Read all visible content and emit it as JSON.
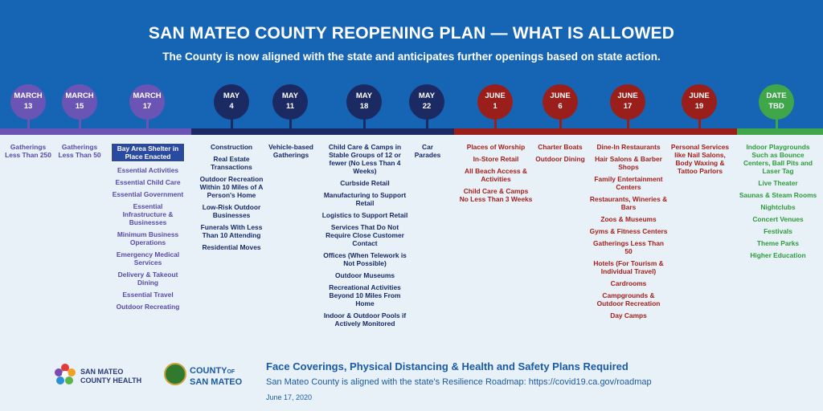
{
  "header": {
    "title": "SAN MATEO COUNTY REOPENING PLAN — WHAT IS ALLOWED",
    "subtitle": "The County is now aligned with the state and anticipates further openings based on state action."
  },
  "colors": {
    "header": "#1665b5",
    "purple": "#6a55b5",
    "navy": "#1c2a63",
    "red": "#9a1f1b",
    "green": "#3fa64a",
    "highlight": "#2a4aa0"
  },
  "milestones": [
    {
      "month": "MARCH",
      "day": "13",
      "phase": "purple",
      "items": [
        "Gatherings Less Than 250"
      ]
    },
    {
      "month": "MARCH",
      "day": "15",
      "phase": "purple",
      "items": [
        "Gatherings Less Than 50"
      ]
    },
    {
      "month": "MARCH",
      "day": "17",
      "phase": "purple",
      "items": [
        "Bay Area Shelter in Place Enacted",
        "Essential Activities",
        "Essential Child Care",
        "Essential Government",
        "Essential Infrastructure & Businesses",
        "Minimum Business Operations",
        "Emergency Medical Services",
        "Delivery & Takeout Dining",
        "Essential Travel",
        "Outdoor Recreating"
      ]
    },
    {
      "month": "MAY",
      "day": "4",
      "phase": "navy",
      "items": [
        "Construction",
        "Real Estate Transactions",
        "Outdoor Recreation Within 10 Miles of A Person's Home",
        "Low-Risk Outdoor Businesses",
        "Funerals With Less Than 10 Attending",
        "Residential Moves"
      ]
    },
    {
      "month": "MAY",
      "day": "11",
      "phase": "navy",
      "items": [
        "Vehicle-based Gatherings"
      ]
    },
    {
      "month": "MAY",
      "day": "18",
      "phase": "navy",
      "items": [
        "Child Care & Camps in Stable Groups of 12 or fewer (No Less Than 4 Weeks)",
        "Curbside Retail",
        "Manufacturing to Support Retail",
        "Logistics to Support Retail",
        "Services That Do Not Require Close Customer Contact",
        "Offices (When Telework is Not Possible)",
        "Outdoor Museums",
        "Recreational Activities Beyond 10 Miles From Home",
        "Indoor & Outdoor Pools if Actively Monitored"
      ]
    },
    {
      "month": "MAY",
      "day": "22",
      "phase": "navy",
      "items": [
        "Car Parades"
      ]
    },
    {
      "month": "JUNE",
      "day": "1",
      "phase": "red",
      "items": [
        "Places of Worship",
        "In-Store Retail",
        "All Beach Access & Activities",
        "Child Care & Camps No Less Than 3 Weeks"
      ]
    },
    {
      "month": "JUNE",
      "day": "6",
      "phase": "red",
      "items": [
        "Charter Boats",
        "Outdoor Dining"
      ]
    },
    {
      "month": "JUNE",
      "day": "17",
      "phase": "red",
      "items": [
        "Dine-In Restaurants",
        "Hair Salons & Barber Shops",
        "Family Entertainment Centers",
        "Restaurants, Wineries & Bars",
        "Zoos & Museums",
        "Gyms & Fitness Centers",
        "Gatherings Less Than 50",
        "Hotels (For Tourism & Individual Travel)",
        "Cardrooms",
        "Campgrounds & Outdoor Recreation",
        "Day Camps"
      ]
    },
    {
      "month": "JUNE",
      "day": "19",
      "phase": "red",
      "items": [
        "Personal Services like Nail Salons, Body Waxing & Tattoo Parlors"
      ]
    },
    {
      "month": "DATE",
      "day": "TBD",
      "phase": "green",
      "items": [
        "Indoor Playgrounds Such as Bounce Centers, Ball Pits and Laser Tag",
        "Live Theater",
        "Saunas & Steam Rooms",
        "Nightclubs",
        "Concert Venues",
        "Festivals",
        "Theme Parks",
        "Higher Education"
      ]
    }
  ],
  "footer": {
    "health_logo_text": "SAN MATEO COUNTY HEALTH",
    "county_logo_line1": "COUNTY",
    "county_logo_of": "OF",
    "county_logo_line2": "SAN MATEO",
    "notice": "Face Coverings, Physical Distancing & Health and Safety Plans Required",
    "roadmap": "San Mateo County is aligned with the state's Resilience Roadmap:  https://covid19.ca.gov/roadmap",
    "date": "June 17, 2020"
  }
}
